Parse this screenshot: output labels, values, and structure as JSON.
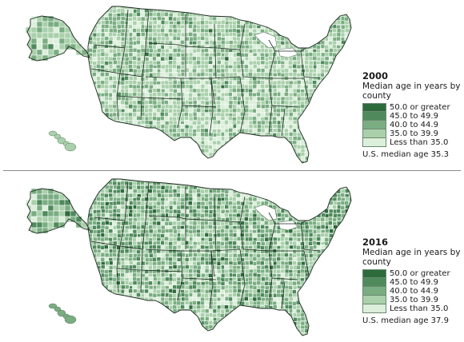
{
  "panels": [
    {
      "year": "2000",
      "title": "Median age in years by county",
      "median_text": "U.S. median age 35.3",
      "shade_weights": [
        0.3,
        3.5,
        28,
        48,
        20
      ]
    },
    {
      "year": "2016",
      "title": "Median age in years by county",
      "median_text": "U.S. median age 37.9",
      "shade_weights": [
        3,
        17,
        40,
        30,
        10
      ]
    }
  ],
  "legend": [
    {
      "label": "50.0 or greater",
      "color": "#2e6b3c"
    },
    {
      "label": "45.0 to 49.9",
      "color": "#4f8a5c"
    },
    {
      "label": "40.0 to 44.9",
      "color": "#7aad82"
    },
    {
      "label": "35.0 to 39.9",
      "color": "#a9d0ab"
    },
    {
      "label": "Less than 35.0",
      "color": "#dcefdb"
    }
  ],
  "colors": {
    "county_border": "#ffffff",
    "state_border": "#1e2a22",
    "divider": "#8a8a8a"
  }
}
